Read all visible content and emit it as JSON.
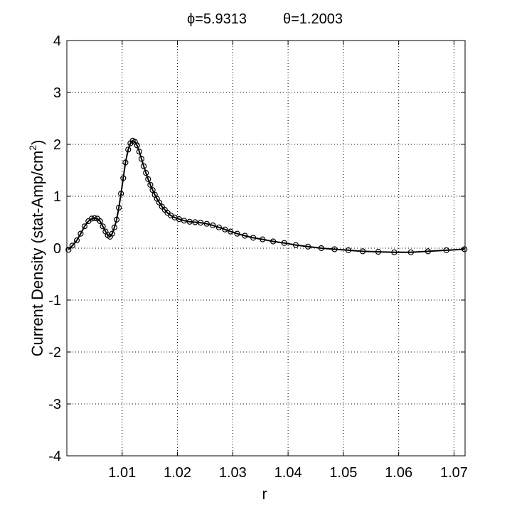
{
  "chart_data": {
    "type": "line",
    "title_parts": [
      "ϕ=5.9313",
      "θ=1.2003"
    ],
    "xlabel": "r",
    "ylabel": "Current Density (stat-Amp/cm",
    "ylabel_sup": "2",
    "ylabel_close": ")",
    "xlim": [
      1.0,
      1.072
    ],
    "ylim": [
      -4,
      4
    ],
    "xticks": [
      1.01,
      1.02,
      1.03,
      1.04,
      1.05,
      1.06,
      1.07
    ],
    "xtick_labels": [
      "1.01",
      "1.02",
      "1.03",
      "1.04",
      "1.05",
      "1.06",
      "1.07"
    ],
    "yticks": [
      4,
      3,
      2,
      1,
      0,
      -1,
      -2,
      -3,
      -4
    ],
    "ytick_labels": [
      "4",
      "3",
      "2",
      "1",
      "0",
      "-1",
      "-2",
      "-3",
      "-4"
    ],
    "grid": true,
    "marker": "circle",
    "series": [
      {
        "x": [
          1.0003,
          1.001,
          1.0018,
          1.0025,
          1.0032,
          1.0039,
          1.0045,
          1.005,
          1.0055,
          1.006,
          1.0065,
          1.007,
          1.0074,
          1.0078,
          1.0082,
          1.0086,
          1.009,
          1.0094,
          1.0098,
          1.0102,
          1.0106,
          1.0111,
          1.0115,
          1.0119,
          1.0123,
          1.0127,
          1.0131,
          1.0135,
          1.0139,
          1.0143,
          1.0147,
          1.0151,
          1.0155,
          1.0159,
          1.0163,
          1.0167,
          1.0172,
          1.0177,
          1.0182,
          1.0188,
          1.0195,
          1.0203,
          1.0212,
          1.0222,
          1.0232,
          1.0242,
          1.0253,
          1.0264,
          1.0275,
          1.0286,
          1.0296,
          1.0308,
          1.0322,
          1.0337,
          1.0354,
          1.0373,
          1.0393,
          1.0414,
          1.0436,
          1.046,
          1.0484,
          1.0509,
          1.0535,
          1.0563,
          1.0592,
          1.0622,
          1.0653,
          1.0686,
          1.0719
        ],
        "y": [
          -0.03,
          0.05,
          0.15,
          0.28,
          0.42,
          0.52,
          0.57,
          0.58,
          0.57,
          0.52,
          0.42,
          0.32,
          0.25,
          0.22,
          0.28,
          0.4,
          0.55,
          0.78,
          1.05,
          1.35,
          1.65,
          1.9,
          2.02,
          2.07,
          2.05,
          1.98,
          1.86,
          1.72,
          1.58,
          1.45,
          1.33,
          1.22,
          1.12,
          1.03,
          0.95,
          0.88,
          0.8,
          0.74,
          0.68,
          0.63,
          0.59,
          0.56,
          0.53,
          0.51,
          0.5,
          0.49,
          0.47,
          0.44,
          0.4,
          0.36,
          0.32,
          0.28,
          0.24,
          0.2,
          0.17,
          0.13,
          0.1,
          0.06,
          0.03,
          0.0,
          -0.02,
          -0.04,
          -0.06,
          -0.07,
          -0.08,
          -0.08,
          -0.06,
          -0.04,
          -0.02
        ]
      }
    ]
  }
}
